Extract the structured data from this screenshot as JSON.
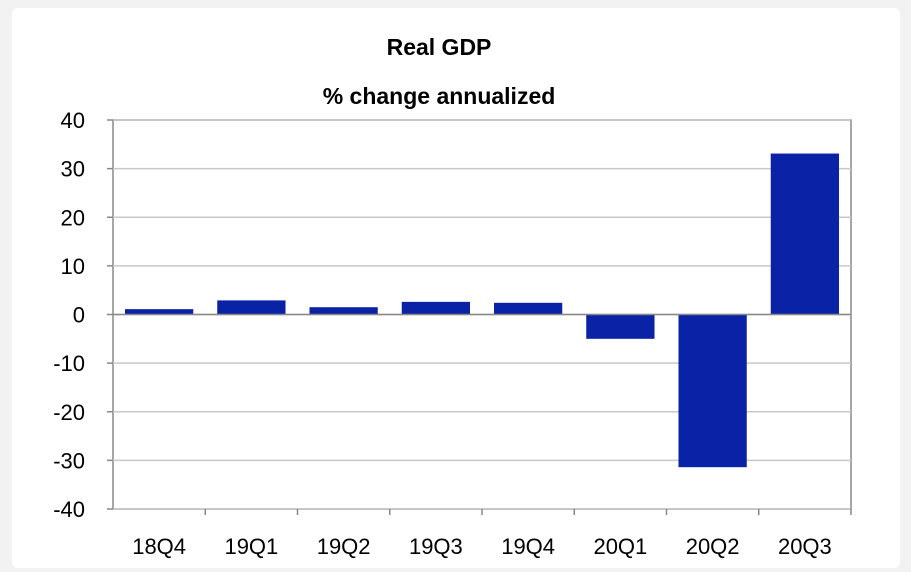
{
  "chart_data": {
    "type": "bar",
    "title": "Real GDP",
    "subtitle": "% change annualized",
    "xlabel": "",
    "ylabel": "",
    "categories": [
      "18Q4",
      "19Q1",
      "19Q2",
      "19Q3",
      "19Q4",
      "20Q1",
      "20Q2",
      "20Q3"
    ],
    "values": [
      1.1,
      2.9,
      1.5,
      2.6,
      2.4,
      -5.0,
      -31.4,
      33.1
    ],
    "ylim": [
      -40,
      40
    ],
    "yticks": [
      "40",
      "30",
      "20",
      "10",
      "0",
      "-10",
      "-20",
      "-30",
      "-40"
    ],
    "grid": true,
    "legend": "none"
  },
  "colors": {
    "bar": "#0a22a6",
    "grid": "#c8c8c8",
    "axis": "#888888"
  }
}
